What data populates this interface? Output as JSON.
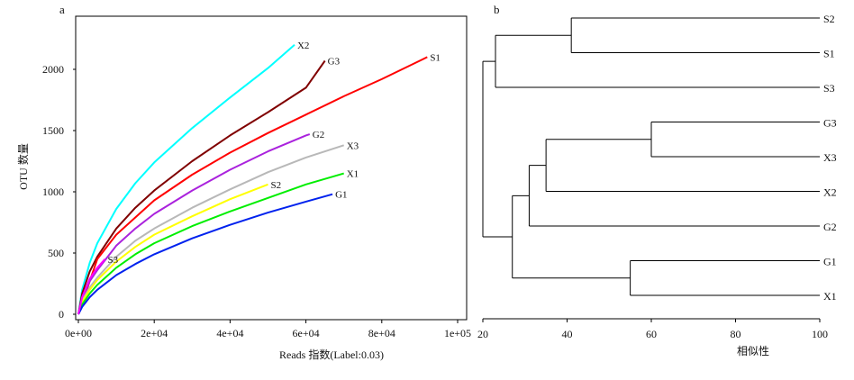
{
  "panel_a": {
    "letter": "a"
  },
  "panel_b": {
    "letter": "b"
  },
  "chart_data": [
    {
      "type": "line",
      "panel": "a",
      "xlabel": "Reads 指数(Label:0.03)",
      "ylabel": "OTU 数量",
      "xlim": [
        0,
        100000
      ],
      "ylim": [
        0,
        2350
      ],
      "x_tick_labels": [
        "0e+00",
        "2e+04",
        "4e+04",
        "6e+04",
        "8e+04",
        "1e+05"
      ],
      "y_tick_labels": [
        "0",
        "500",
        "1000",
        "1500",
        "2000"
      ],
      "grid": false,
      "legend": "labels at line ends",
      "series": [
        {
          "name": "X2",
          "color": "#00ffff",
          "x": [
            0,
            1000,
            3000,
            5000,
            10000,
            15000,
            20000,
            30000,
            40000,
            50000,
            57000
          ],
          "y": [
            0,
            200,
            420,
            580,
            860,
            1070,
            1240,
            1520,
            1770,
            2010,
            2200
          ]
        },
        {
          "name": "G3",
          "color": "#800000",
          "x": [
            0,
            1000,
            3000,
            5000,
            10000,
            15000,
            20000,
            30000,
            40000,
            50000,
            60000,
            65000
          ],
          "y": [
            0,
            170,
            350,
            470,
            700,
            870,
            1010,
            1250,
            1460,
            1650,
            1850,
            2070
          ]
        },
        {
          "name": "S1",
          "color": "#ff0000",
          "x": [
            0,
            5000,
            10000,
            20000,
            30000,
            40000,
            50000,
            60000,
            70000,
            80000,
            90000,
            92000
          ],
          "y": [
            0,
            450,
            650,
            930,
            1140,
            1320,
            1480,
            1630,
            1780,
            1920,
            2070,
            2100
          ]
        },
        {
          "name": "G2",
          "color": "#aa22dd",
          "x": [
            0,
            1000,
            3000,
            5000,
            10000,
            15000,
            20000,
            30000,
            40000,
            50000,
            60000,
            61000
          ],
          "y": [
            0,
            130,
            270,
            360,
            560,
            700,
            820,
            1010,
            1180,
            1330,
            1460,
            1470
          ]
        },
        {
          "name": "X3",
          "color": "#b8b8b8",
          "x": [
            0,
            1000,
            3000,
            5000,
            10000,
            15000,
            20000,
            30000,
            40000,
            50000,
            60000,
            70000
          ],
          "y": [
            0,
            110,
            220,
            300,
            470,
            600,
            700,
            870,
            1020,
            1160,
            1280,
            1380
          ]
        },
        {
          "name": "S2",
          "color": "#ffff00",
          "x": [
            0,
            1000,
            3000,
            5000,
            10000,
            15000,
            20000,
            30000,
            40000,
            50000
          ],
          "y": [
            0,
            100,
            200,
            280,
            430,
            550,
            650,
            800,
            940,
            1060
          ]
        },
        {
          "name": "X1",
          "color": "#00ee00",
          "x": [
            0,
            1000,
            3000,
            5000,
            10000,
            15000,
            20000,
            30000,
            40000,
            50000,
            60000,
            70000
          ],
          "y": [
            0,
            80,
            170,
            240,
            380,
            490,
            580,
            720,
            840,
            950,
            1060,
            1150
          ]
        },
        {
          "name": "G1",
          "color": "#0022ee",
          "x": [
            0,
            1000,
            3000,
            5000,
            10000,
            15000,
            20000,
            30000,
            40000,
            50000,
            60000,
            67000
          ],
          "y": [
            0,
            60,
            140,
            200,
            320,
            410,
            490,
            620,
            730,
            830,
            920,
            980
          ]
        },
        {
          "name": "S3",
          "color": "#ff00ff",
          "x": [
            0,
            1000,
            3000,
            5000,
            7000
          ],
          "y": [
            0,
            140,
            290,
            380,
            450
          ]
        }
      ]
    },
    {
      "type": "dendrogram",
      "panel": "b",
      "xlabel": "相似性",
      "xlim": [
        20,
        100
      ],
      "x_tick_labels": [
        "20",
        "40",
        "60",
        "80",
        "100"
      ],
      "leaves": [
        "S2",
        "S1",
        "S3",
        "G3",
        "X3",
        "X2",
        "G2",
        "G1",
        "X1"
      ],
      "merges": [
        {
          "left": "S2",
          "right": "S1",
          "similarity": 41
        },
        {
          "left": "S2+S1",
          "right": "S3",
          "similarity": 23
        },
        {
          "left": "G3",
          "right": "X3",
          "similarity": 60
        },
        {
          "left": "G3+X3",
          "right": "X2",
          "similarity": 35
        },
        {
          "left": "G3+X3+X2",
          "right": "G2",
          "similarity": 31
        },
        {
          "left": "G1",
          "right": "X1",
          "similarity": 55
        },
        {
          "left": "G3+X3+X2+G2",
          "right": "G1+X1",
          "similarity": 27
        },
        {
          "left": "S2+S1+S3",
          "right": "G3+X3+X2+G2+G1+X1",
          "similarity": 20
        }
      ]
    }
  ]
}
